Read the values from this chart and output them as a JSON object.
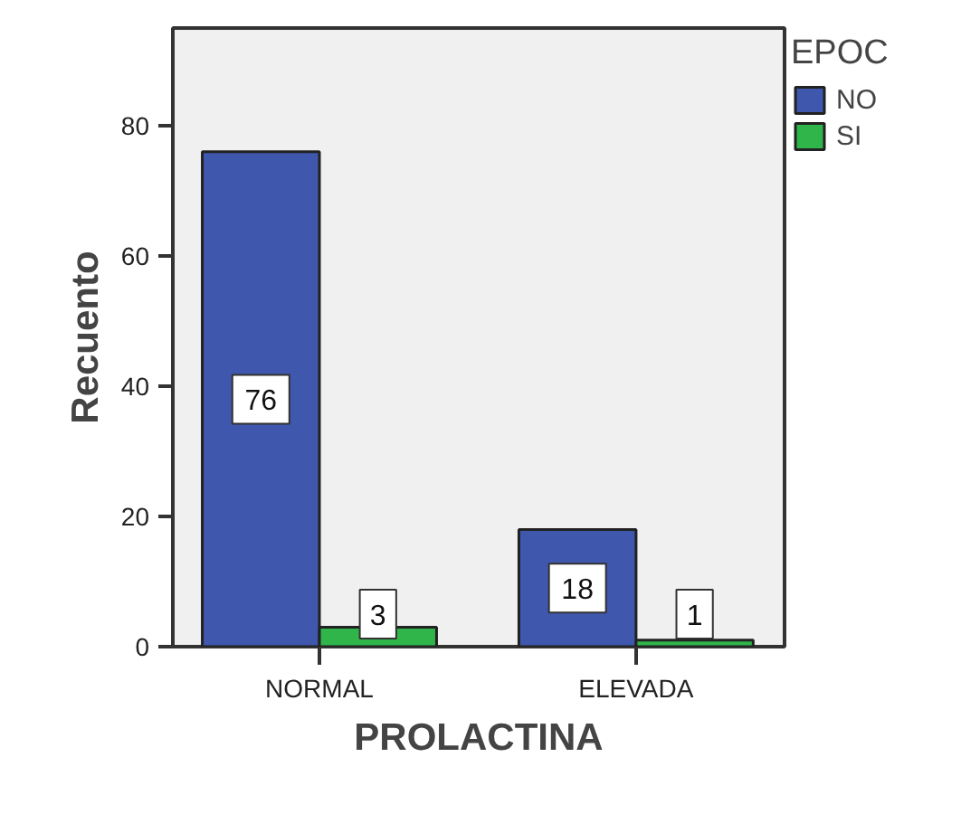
{
  "chart_data": {
    "type": "bar",
    "xlabel": "PROLACTINA",
    "ylabel": "Recuento",
    "legend_title": "EPOC",
    "legend": "right",
    "categories": [
      "NORMAL",
      "ELEVADA"
    ],
    "series": [
      {
        "name": "NO",
        "color": "#3f57ac",
        "values": [
          76,
          18
        ]
      },
      {
        "name": "SI",
        "color": "#2fb54a",
        "values": [
          3,
          1
        ]
      }
    ],
    "ylim": [
      0,
      95
    ],
    "yticks": [
      0,
      20,
      40,
      60,
      80
    ],
    "grid": false,
    "data_labels": true
  }
}
